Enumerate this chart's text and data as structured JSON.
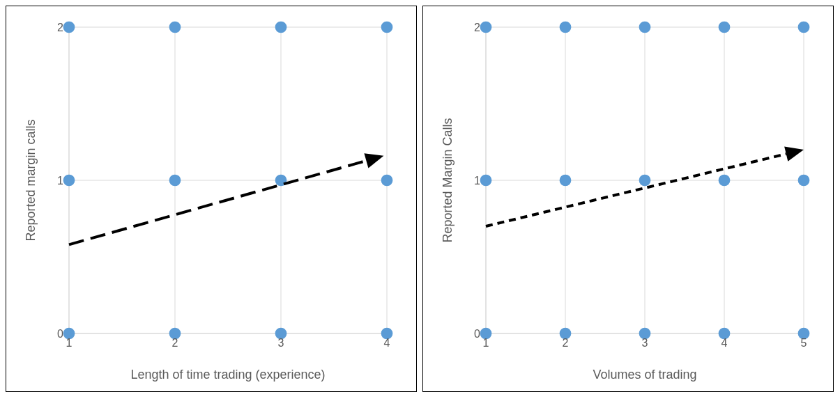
{
  "chart_data": [
    {
      "type": "scatter",
      "xlabel": "Length of time trading (experience)",
      "ylabel": "Reported margin calls",
      "xlim": [
        1,
        4
      ],
      "xticks": [
        1,
        2,
        3,
        4
      ],
      "ylim": [
        0,
        2
      ],
      "yticks": [
        0,
        1,
        2
      ],
      "grid": true,
      "legend": false,
      "marker": "circle",
      "series": [
        {
          "color": "#5b9bd5",
          "x": [
            1,
            1,
            1,
            2,
            2,
            2,
            3,
            3,
            3,
            4,
            4,
            4
          ],
          "values": [
            0,
            1,
            2,
            0,
            1,
            2,
            0,
            1,
            2,
            0,
            1,
            2
          ]
        }
      ]
    },
    {
      "type": "scatter",
      "xlabel": "Volumes of trading",
      "ylabel": "Reported Margin Calls",
      "xlim": [
        1,
        5
      ],
      "xticks": [
        1,
        2,
        3,
        4,
        5
      ],
      "ylim": [
        0,
        2
      ],
      "yticks": [
        0,
        1,
        2
      ],
      "grid": true,
      "legend": false,
      "marker": "circle",
      "series": [
        {
          "color": "#5b9bd5",
          "x": [
            1,
            1,
            1,
            2,
            2,
            2,
            3,
            3,
            3,
            4,
            4,
            4,
            5,
            5,
            5
          ],
          "values": [
            0,
            1,
            2,
            0,
            1,
            2,
            0,
            1,
            2,
            0,
            1,
            2,
            0,
            1,
            2
          ]
        }
      ]
    }
  ]
}
